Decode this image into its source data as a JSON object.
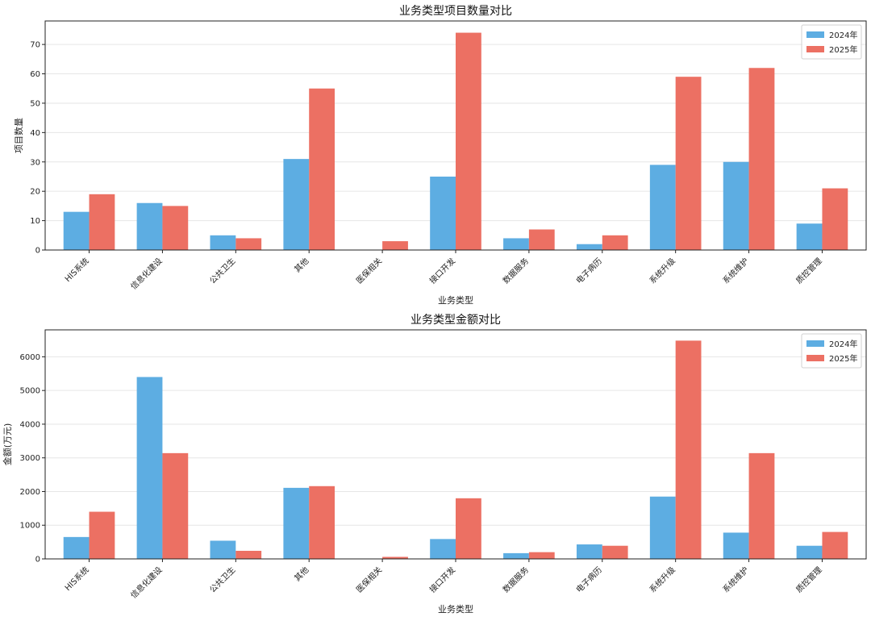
{
  "chart_data": [
    {
      "type": "bar",
      "title": "业务类型项目数量对比",
      "xlabel": "业务类型",
      "ylabel": "项目数量",
      "categories": [
        "HIS系统",
        "信息化建设",
        "公共卫生",
        "其他",
        "医保相关",
        "接口开发",
        "数据服务",
        "电子病历",
        "系统升级",
        "系统维护",
        "质控管理"
      ],
      "ylim": [
        0,
        78
      ],
      "yticks": [
        0,
        10,
        20,
        30,
        40,
        50,
        60,
        70
      ],
      "grid": true,
      "legend": "top-right",
      "series": [
        {
          "name": "2024年",
          "color": "#5dade2",
          "values": [
            13,
            16,
            5,
            31,
            0,
            25,
            4,
            2,
            29,
            30,
            9
          ]
        },
        {
          "name": "2025年",
          "color": "#ec7063",
          "values": [
            19,
            15,
            4,
            55,
            3,
            74,
            7,
            5,
            59,
            62,
            21
          ]
        }
      ]
    },
    {
      "type": "bar",
      "title": "业务类型金额对比",
      "xlabel": "业务类型",
      "ylabel": "金额(万元)",
      "categories": [
        "HIS系统",
        "信息化建设",
        "公共卫生",
        "其他",
        "医保相关",
        "接口开发",
        "数据服务",
        "电子病历",
        "系统升级",
        "系统维护",
        "质控管理"
      ],
      "ylim": [
        0,
        6800
      ],
      "yticks": [
        0,
        1000,
        2000,
        3000,
        4000,
        5000,
        6000
      ],
      "grid": true,
      "legend": "top-right",
      "series": [
        {
          "name": "2024年",
          "color": "#5dade2",
          "values": [
            650,
            5400,
            540,
            2110,
            0,
            590,
            170,
            430,
            1850,
            780,
            390
          ]
        },
        {
          "name": "2025年",
          "color": "#ec7063",
          "values": [
            1400,
            3140,
            240,
            2160,
            60,
            1800,
            200,
            390,
            6480,
            3140,
            800
          ]
        }
      ]
    }
  ]
}
